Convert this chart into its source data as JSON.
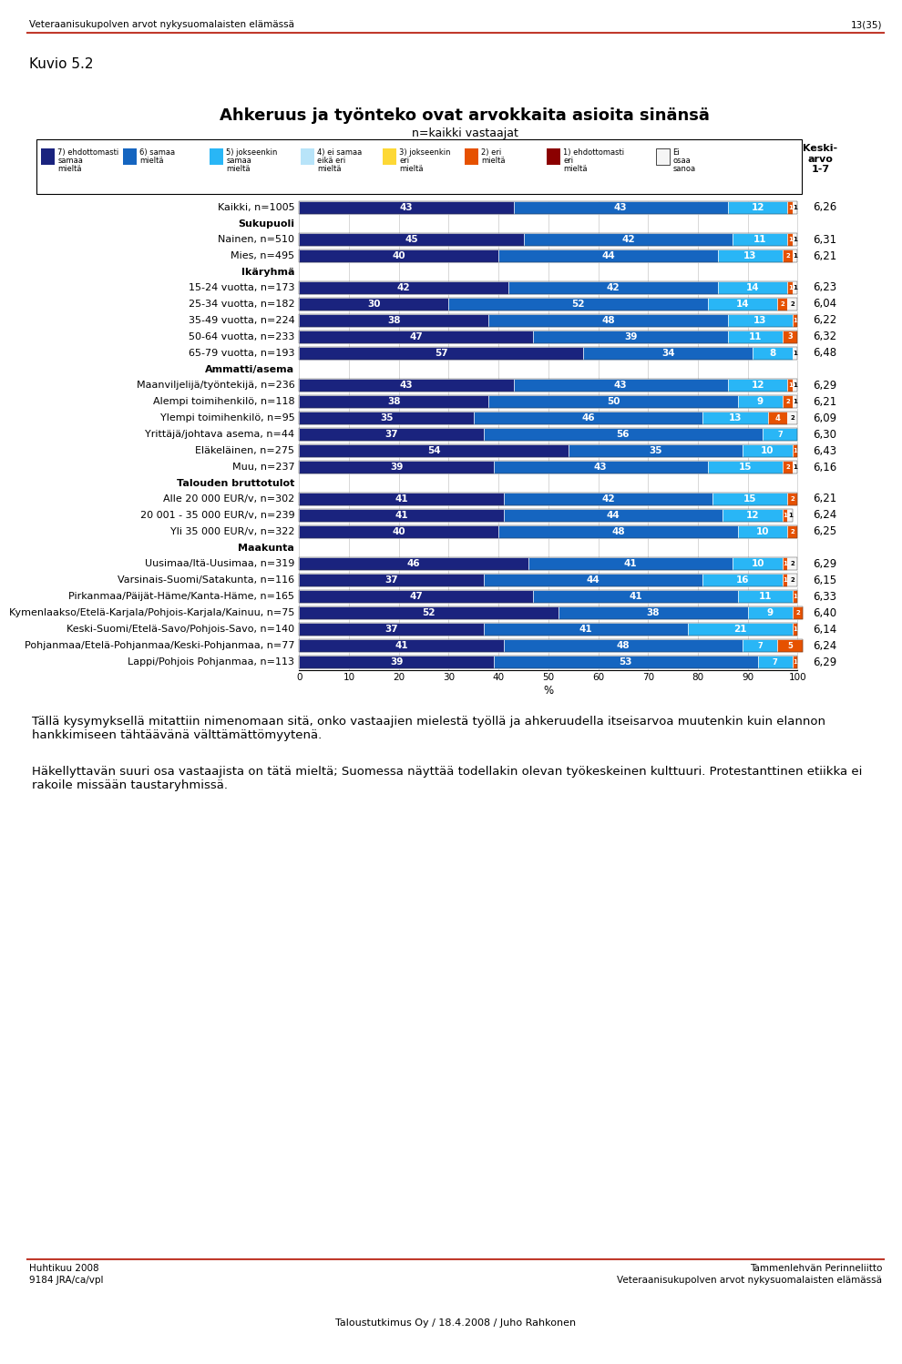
{
  "title": "Ahkeruus ja työnteko ovat arvokkaita asioita sinänsä",
  "subtitle": "n=kaikki vastaajat",
  "kuvio": "Kuvio 5.2",
  "header_text": "Veteraanisukupolven arvot nykysuomalaisten elämässä",
  "header_right": "13(35)",
  "footer_center": "Taloustutkimus Oy / 18.4.2008 / Juho Rahkonen",
  "footer_left1": "Huhtikuu 2008",
  "footer_left2": "9184 JRA/ca/vpl",
  "footer_right1": "Tammenlehvän Perinneliitto",
  "footer_right2": "Veteraanisukupolven arvot nykysuomalaisten elämässä",
  "body_text": "Tällä kysymyksellä mitattiin nimenomaan sitä, onko vastaajien mielestä työllä ja ahkeruudella itseisarvoa muutenkin kuin elannon hankkimiseen tähtäävänä välttämättömyytenä.\nHäkellyttavän suuri osa vastaajista on tätä mieltä; Suomessa näyttää todellakin olevan työkeskeinen kulttuuri. Protestanttinen etiikka ei rakoile missään taustaryhmissä.",
  "legend_labels": [
    "7) ehdottomasti\nsamaa\nmieltä",
    "6) samaa\nmieltä",
    "5) jokseenkin\nsamaa\nmieltä",
    "4) ei samaa\neikä eri\nmieltä",
    "3) jokseenkin\neri\nmieltä",
    "2) eri\nmieltä",
    "1) ehdottomasti\neri\nmieltä",
    "Ei\nosaa\nsanoa"
  ],
  "legend_colors": [
    "#1a237e",
    "#1565c0",
    "#29b6f6",
    "#b8e4f9",
    "#fdd835",
    "#e65100",
    "#8b0000",
    "#f5f5f5"
  ],
  "seg_colors": [
    "#1a237e",
    "#1565c0",
    "#29b6f6",
    "#e65100",
    "#f5f5f5"
  ],
  "xlabel": "%",
  "rows": [
    {
      "label": "Kaikki, n=1005",
      "bold": false,
      "segs": [
        43,
        43,
        12,
        1,
        1
      ],
      "avg": "6,26"
    },
    {
      "label": "Sukupuoli",
      "bold": true,
      "segs": null,
      "avg": null
    },
    {
      "label": "Nainen, n=510",
      "bold": false,
      "segs": [
        45,
        42,
        11,
        1,
        1
      ],
      "avg": "6,31"
    },
    {
      "label": "Mies, n=495",
      "bold": false,
      "segs": [
        40,
        44,
        13,
        2,
        1
      ],
      "avg": "6,21"
    },
    {
      "label": "Ikäryhmä",
      "bold": true,
      "segs": null,
      "avg": null
    },
    {
      "label": "15-24 vuotta, n=173",
      "bold": false,
      "segs": [
        42,
        42,
        14,
        1,
        1
      ],
      "avg": "6,23"
    },
    {
      "label": "25-34 vuotta, n=182",
      "bold": false,
      "segs": [
        30,
        52,
        14,
        2,
        2
      ],
      "avg": "6,04"
    },
    {
      "label": "35-49 vuotta, n=224",
      "bold": false,
      "segs": [
        38,
        48,
        13,
        1,
        0
      ],
      "avg": "6,22"
    },
    {
      "label": "50-64 vuotta, n=233",
      "bold": false,
      "segs": [
        47,
        39,
        11,
        3,
        0
      ],
      "avg": "6,32"
    },
    {
      "label": "65-79 vuotta, n=193",
      "bold": false,
      "segs": [
        57,
        34,
        8,
        0,
        1
      ],
      "avg": "6,48"
    },
    {
      "label": "Ammatti/asema",
      "bold": true,
      "segs": null,
      "avg": null
    },
    {
      "label": "Maanviljelijä/työntekijä, n=236",
      "bold": false,
      "segs": [
        43,
        43,
        12,
        1,
        1
      ],
      "avg": "6,29"
    },
    {
      "label": "Alempi toimihenkilö, n=118",
      "bold": false,
      "segs": [
        38,
        50,
        9,
        2,
        1
      ],
      "avg": "6,21"
    },
    {
      "label": "Ylempi toimihenkilö, n=95",
      "bold": false,
      "segs": [
        35,
        46,
        13,
        4,
        2
      ],
      "avg": "6,09"
    },
    {
      "label": "Yrittäjä/johtava asema, n=44",
      "bold": false,
      "segs": [
        37,
        56,
        7,
        0,
        0
      ],
      "avg": "6,30"
    },
    {
      "label": "Eläkeläinen, n=275",
      "bold": false,
      "segs": [
        54,
        35,
        10,
        1,
        0
      ],
      "avg": "6,43"
    },
    {
      "label": "Muu, n=237",
      "bold": false,
      "segs": [
        39,
        43,
        15,
        2,
        1
      ],
      "avg": "6,16"
    },
    {
      "label": "Talouden bruttotulot",
      "bold": true,
      "segs": null,
      "avg": null
    },
    {
      "label": "Alle 20 000 EUR/v, n=302",
      "bold": false,
      "segs": [
        41,
        42,
        15,
        2,
        0
      ],
      "avg": "6,21"
    },
    {
      "label": "20 001 - 35 000 EUR/v, n=239",
      "bold": false,
      "segs": [
        41,
        44,
        12,
        1,
        1
      ],
      "avg": "6,24"
    },
    {
      "label": "Yli 35 000 EUR/v, n=322",
      "bold": false,
      "segs": [
        40,
        48,
        10,
        2,
        0
      ],
      "avg": "6,25"
    },
    {
      "label": "Maakunta",
      "bold": true,
      "segs": null,
      "avg": null
    },
    {
      "label": "Uusimaa/Itä-Uusimaa, n=319",
      "bold": false,
      "segs": [
        46,
        41,
        10,
        1,
        2
      ],
      "avg": "6,29"
    },
    {
      "label": "Varsinais-Suomi/Satakunta, n=116",
      "bold": false,
      "segs": [
        37,
        44,
        16,
        1,
        2
      ],
      "avg": "6,15"
    },
    {
      "label": "Pirkanmaa/Päijät-Häme/Kanta-Häme, n=165",
      "bold": false,
      "segs": [
        47,
        41,
        11,
        1,
        0
      ],
      "avg": "6,33"
    },
    {
      "label": "Kymenlaakso/Etelä-Karjala/Pohjois-Karjala/Kainuu, n=75",
      "bold": false,
      "segs": [
        52,
        38,
        9,
        2,
        0
      ],
      "avg": "6,40"
    },
    {
      "label": "Keski-Suomi/Etelä-Savo/Pohjois-Savo, n=140",
      "bold": false,
      "segs": [
        37,
        41,
        21,
        1,
        0
      ],
      "avg": "6,14"
    },
    {
      "label": "Pohjanmaa/Etelä-Pohjanmaa/Keski-Pohjanmaa, n=77",
      "bold": false,
      "segs": [
        41,
        48,
        7,
        5,
        0
      ],
      "avg": "6,24"
    },
    {
      "label": "Lappi/Pohjois Pohjanmaa, n=113",
      "bold": false,
      "segs": [
        39,
        53,
        7,
        1,
        0
      ],
      "avg": "6,29"
    }
  ]
}
